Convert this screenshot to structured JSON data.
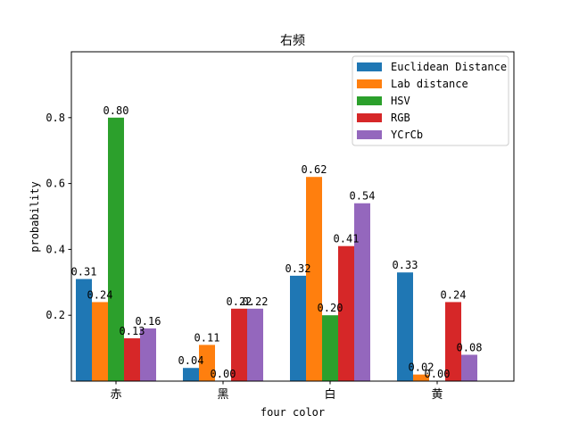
{
  "chart_data": {
    "type": "bar",
    "title": "右频",
    "xlabel": "four color",
    "ylabel": "probability",
    "categories": [
      "赤",
      "黑",
      "白",
      "黄"
    ],
    "ylim": [
      0,
      1.0
    ],
    "yticks": [
      "0.2",
      "0.4",
      "0.6",
      "0.8"
    ],
    "legend_position": "top-right",
    "series": [
      {
        "name": "Euclidean Distance",
        "color": "#1f77b4",
        "values": [
          0.31,
          0.04,
          0.32,
          0.33
        ],
        "labels": [
          "0.31",
          "0.04",
          "0.32",
          "0.33"
        ]
      },
      {
        "name": "Lab distance",
        "color": "#ff7f0e",
        "values": [
          0.24,
          0.11,
          0.62,
          0.02
        ],
        "labels": [
          "0.24",
          "0.11",
          "0.62",
          "0.02"
        ]
      },
      {
        "name": "HSV",
        "color": "#2ca02c",
        "values": [
          0.8,
          0.0,
          0.2,
          0.0
        ],
        "labels": [
          "0.80",
          "0.00",
          "0.20",
          "0.00"
        ]
      },
      {
        "name": "RGB",
        "color": "#d62728",
        "values": [
          0.13,
          0.22,
          0.41,
          0.24
        ],
        "labels": [
          "0.13",
          "0.22",
          "0.41",
          "0.24"
        ]
      },
      {
        "name": "YCrCb",
        "color": "#9467bd",
        "values": [
          0.16,
          0.22,
          0.54,
          0.08
        ],
        "labels": [
          "0.16",
          "0.22",
          "0.54",
          "0.08"
        ]
      }
    ]
  }
}
